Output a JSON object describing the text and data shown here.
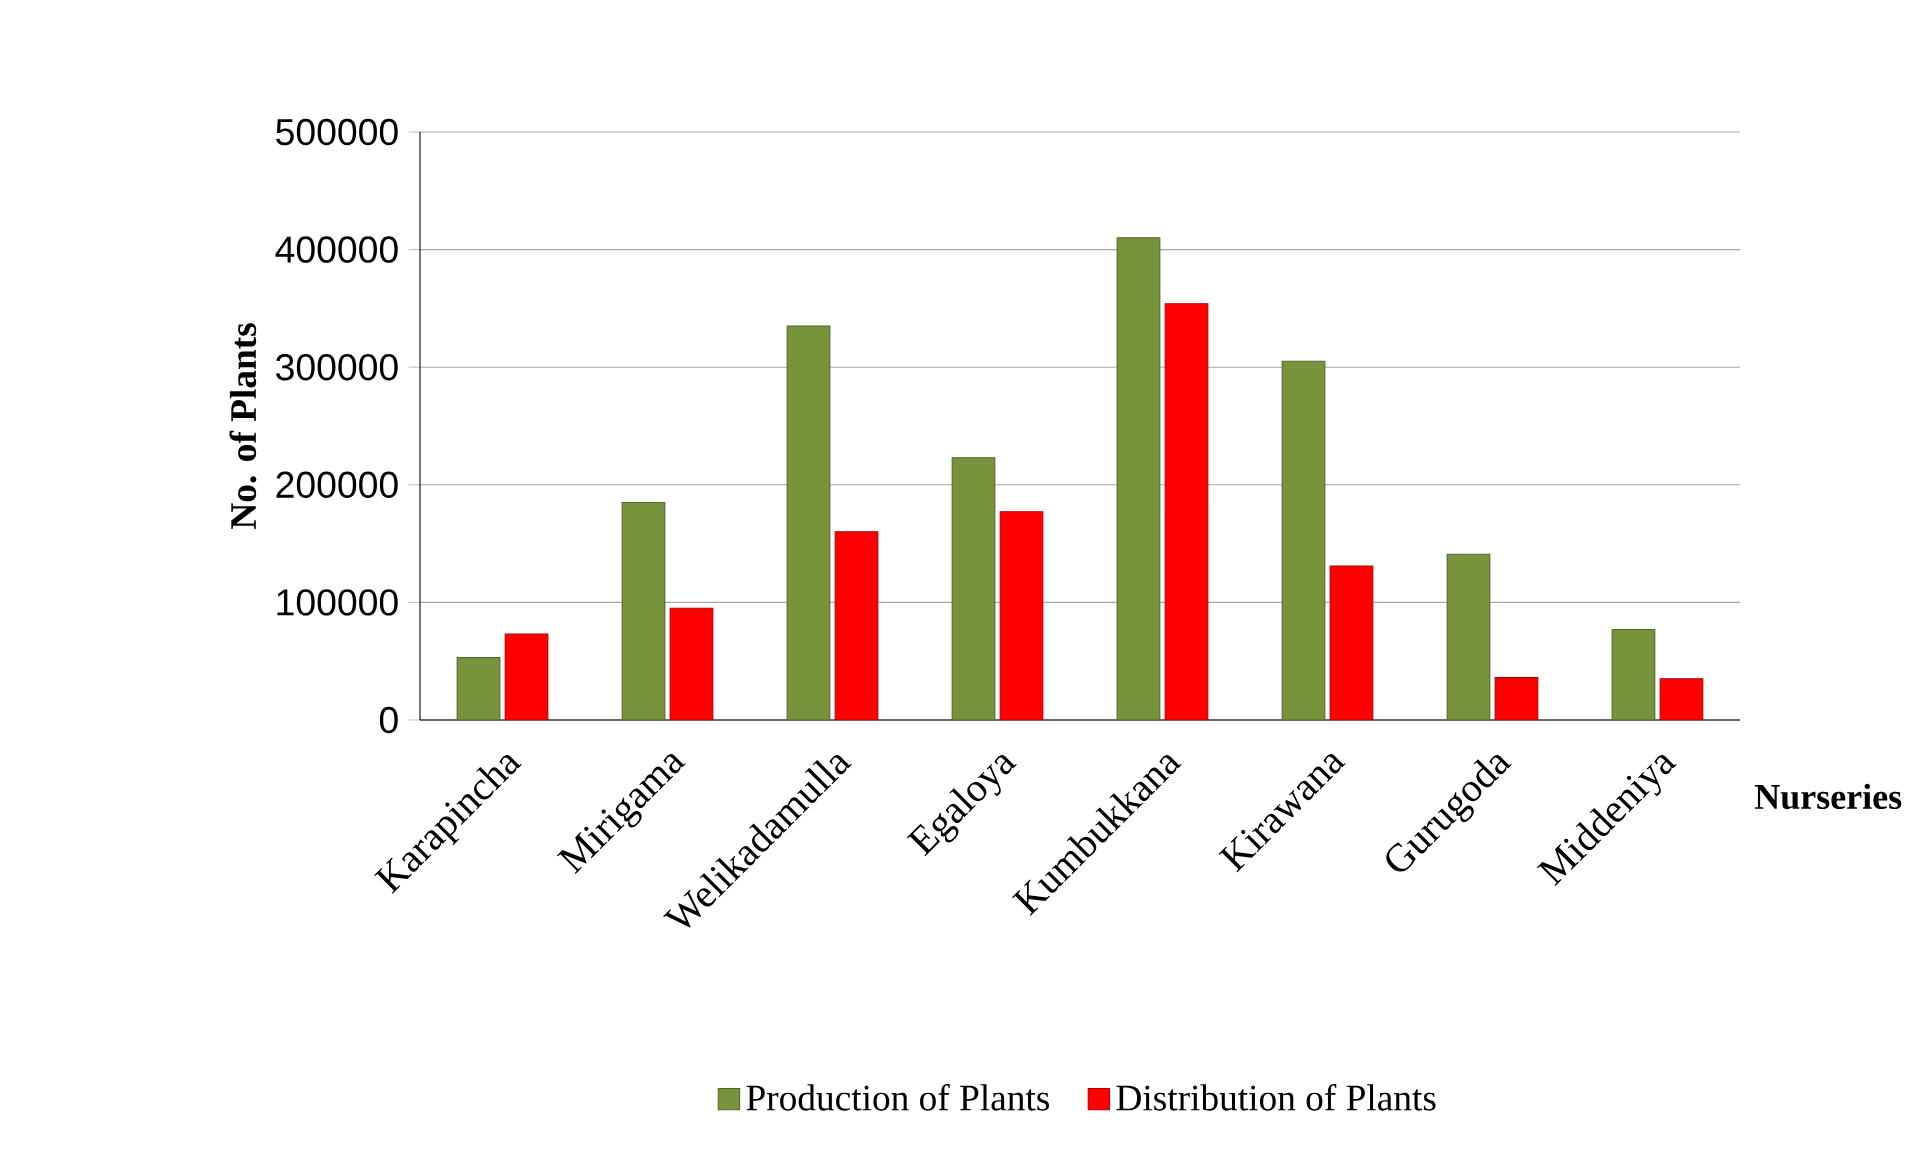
{
  "chart_data": {
    "type": "bar",
    "xlabel": "Nurseries",
    "ylabel": "No. of Plants",
    "categories": [
      "Karapincha",
      "Mirigama",
      "Welikadamulla",
      "Egaloya",
      "Kumbukkana",
      "Kirawana",
      "Gurugoda",
      "Middeniya"
    ],
    "series": [
      {
        "name": "Production of Plants",
        "color": "#77933c",
        "values": [
          53000,
          185000,
          335000,
          223000,
          410000,
          305000,
          141000,
          77000
        ]
      },
      {
        "name": "Distribution of Plants",
        "color": "#ff0000",
        "values": [
          73000,
          95000,
          160000,
          177000,
          354000,
          131000,
          36000,
          35000
        ]
      }
    ],
    "ylim": [
      0,
      500000
    ],
    "yticks": [
      0,
      100000,
      200000,
      300000,
      400000,
      500000
    ],
    "grid": "y",
    "legend": "bottom"
  }
}
